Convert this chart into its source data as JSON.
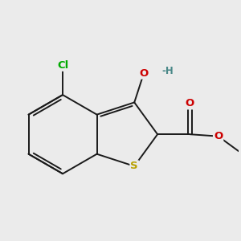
{
  "bg_color": "#ebebeb",
  "bond_color": "#1a1a1a",
  "atom_colors": {
    "S": "#b8a000",
    "O": "#cc0000",
    "Cl": "#00aa00",
    "H": "#4a8888",
    "C": "#1a1a1a"
  },
  "font_size": 9.5,
  "fig_size": [
    3.0,
    3.0
  ],
  "dpi": 100,
  "lw": 1.4
}
